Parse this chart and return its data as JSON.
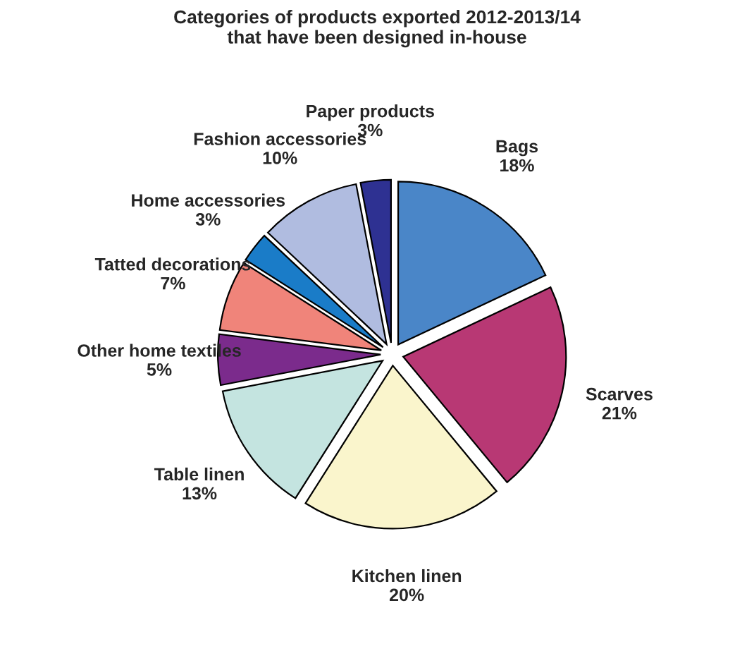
{
  "chart_data": {
    "type": "pie",
    "title": "Categories of products exported 2012-2013/14\nthat have been designed in-house",
    "categories": [
      "Bags",
      "Scarves",
      "Kitchen linen",
      "Table linen",
      "Other home textiles",
      "Tatted decorations",
      "Home accessories",
      "Fashion accessories",
      "Paper products"
    ],
    "values": [
      18,
      21,
      20,
      13,
      5,
      7,
      3,
      10,
      3
    ],
    "value_labels": [
      "18%",
      "21%",
      "20%",
      "13%",
      "5%",
      "7%",
      "3%",
      "10%",
      "3%"
    ],
    "colors": [
      "#4a86c8",
      "#b83874",
      "#faf5cc",
      "#c4e4e0",
      "#7b2b8c",
      "#f0847a",
      "#1a7cc8",
      "#b0bce0",
      "#2e3192"
    ]
  }
}
